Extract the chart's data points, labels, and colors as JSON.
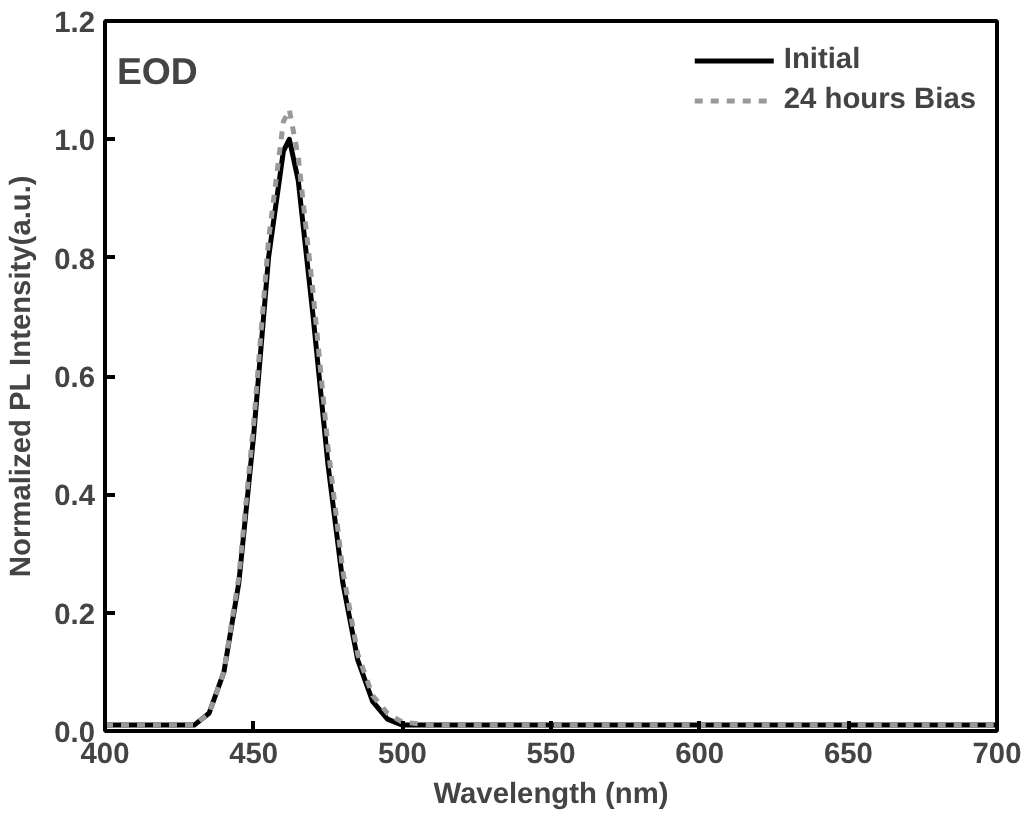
{
  "chart_data": {
    "type": "line",
    "xlabel": "Wavelength (nm)",
    "ylabel": "Normalized PL Intensity(a.u.)",
    "annotations": [
      "EOD"
    ],
    "xlim": [
      400,
      700
    ],
    "xticks": [
      400,
      450,
      500,
      550,
      600,
      650,
      700
    ],
    "ylim": [
      0,
      1.2
    ],
    "yticks": [
      {
        "value": 0,
        "label": "0.0"
      },
      0.2,
      0.4,
      0.6,
      0.8,
      {
        "value": 1,
        "label": "1.0"
      },
      1.2
    ],
    "grid": false,
    "legend": "top right",
    "marker": "none",
    "series": [
      {
        "name": "Initial",
        "color": "#000000",
        "line_style": "solid",
        "x": [
          400,
          420,
          430,
          435,
          440,
          445,
          450,
          455,
          460,
          462,
          465,
          470,
          475,
          480,
          485,
          490,
          495,
          500,
          510,
          550,
          600,
          650,
          700
        ],
        "values": [
          0.01,
          0.01,
          0.01,
          0.03,
          0.1,
          0.25,
          0.5,
          0.8,
          0.98,
          1.0,
          0.93,
          0.7,
          0.45,
          0.25,
          0.12,
          0.05,
          0.02,
          0.01,
          0.01,
          0.01,
          0.01,
          0.01,
          0.01
        ]
      },
      {
        "name": "24 hours Bias",
        "color": "#999999",
        "line_style": "dashed",
        "x": [
          400,
          420,
          430,
          435,
          440,
          445,
          450,
          455,
          460,
          462,
          465,
          470,
          475,
          480,
          485,
          490,
          495,
          500,
          510,
          550,
          600,
          650,
          700
        ],
        "values": [
          0.01,
          0.01,
          0.01,
          0.03,
          0.1,
          0.26,
          0.52,
          0.83,
          1.03,
          1.05,
          0.97,
          0.74,
          0.48,
          0.27,
          0.13,
          0.06,
          0.03,
          0.015,
          0.01,
          0.01,
          0.01,
          0.01,
          0.01
        ]
      }
    ]
  }
}
